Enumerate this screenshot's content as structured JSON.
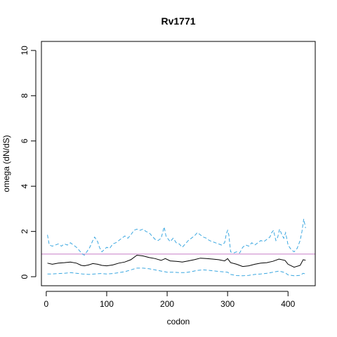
{
  "chart_data": {
    "type": "line",
    "title": "Rv1771",
    "xlabel": "codon",
    "ylabel": "omega (dN/dS)",
    "xlim": [
      -8,
      445
    ],
    "ylim": [
      -0.4,
      10.4
    ],
    "x_ticks": [
      0,
      100,
      200,
      300,
      400
    ],
    "y_ticks": [
      0,
      2,
      4,
      6,
      8,
      10
    ],
    "grid": false,
    "reference_line": {
      "y": 1,
      "color": "#c77cc7"
    },
    "colors": {
      "mean": "#000000",
      "bounds": "#3aa7e0"
    },
    "series": [
      {
        "role": "upper-bound",
        "style": "dashed",
        "x": [
          2,
          5,
          10,
          15,
          20,
          25,
          30,
          35,
          40,
          45,
          50,
          55,
          60,
          63,
          67,
          72,
          77,
          80,
          85,
          88,
          92,
          96,
          100,
          105,
          110,
          115,
          120,
          125,
          130,
          135,
          140,
          145,
          150,
          155,
          160,
          165,
          170,
          175,
          180,
          185,
          190,
          195,
          198,
          202,
          205,
          210,
          215,
          220,
          225,
          230,
          235,
          240,
          245,
          250,
          255,
          260,
          265,
          270,
          275,
          280,
          285,
          290,
          295,
          298,
          300,
          302,
          305,
          310,
          315,
          320,
          325,
          330,
          335,
          340,
          345,
          350,
          355,
          360,
          365,
          370,
          373,
          376,
          378,
          380,
          383,
          386,
          390,
          393,
          396,
          400,
          405,
          410,
          415,
          420,
          423,
          426,
          429
        ],
        "values": [
          1.85,
          1.4,
          1.35,
          1.4,
          1.45,
          1.35,
          1.45,
          1.4,
          1.5,
          1.4,
          1.3,
          1.15,
          1.0,
          0.95,
          1.1,
          1.3,
          1.6,
          1.75,
          1.55,
          1.3,
          1.1,
          1.2,
          1.3,
          1.25,
          1.45,
          1.5,
          1.6,
          1.7,
          1.8,
          1.7,
          1.85,
          2.05,
          2.1,
          2.05,
          2.1,
          2.0,
          1.95,
          1.8,
          1.65,
          1.6,
          1.7,
          2.2,
          1.8,
          1.65,
          1.55,
          1.7,
          1.5,
          1.45,
          1.3,
          1.45,
          1.6,
          1.7,
          1.8,
          1.95,
          1.85,
          1.75,
          1.7,
          1.6,
          1.55,
          1.5,
          1.45,
          1.4,
          1.5,
          1.9,
          2.05,
          1.85,
          1.1,
          1.05,
          1.1,
          1.05,
          1.3,
          1.4,
          1.35,
          1.5,
          1.4,
          1.5,
          1.6,
          1.55,
          1.65,
          1.75,
          1.95,
          2.05,
          1.8,
          1.6,
          1.75,
          2.1,
          1.85,
          1.7,
          1.95,
          1.4,
          1.2,
          1.1,
          1.25,
          1.6,
          2.0,
          2.55,
          2.15
        ]
      },
      {
        "role": "mean",
        "style": "solid",
        "x": [
          2,
          10,
          20,
          30,
          40,
          50,
          58,
          63,
          70,
          77,
          85,
          92,
          100,
          110,
          120,
          130,
          140,
          150,
          160,
          170,
          180,
          190,
          197,
          205,
          215,
          225,
          235,
          245,
          255,
          265,
          275,
          285,
          295,
          300,
          305,
          315,
          325,
          335,
          345,
          355,
          365,
          375,
          385,
          395,
          400,
          410,
          420,
          425,
          429
        ],
        "values": [
          0.6,
          0.55,
          0.6,
          0.62,
          0.65,
          0.6,
          0.5,
          0.48,
          0.52,
          0.58,
          0.55,
          0.5,
          0.48,
          0.52,
          0.6,
          0.65,
          0.75,
          0.95,
          0.92,
          0.85,
          0.8,
          0.72,
          0.8,
          0.7,
          0.68,
          0.65,
          0.7,
          0.75,
          0.82,
          0.8,
          0.78,
          0.75,
          0.7,
          0.8,
          0.62,
          0.55,
          0.45,
          0.48,
          0.55,
          0.6,
          0.62,
          0.68,
          0.78,
          0.72,
          0.55,
          0.42,
          0.5,
          0.75,
          0.73
        ]
      },
      {
        "role": "lower-bound",
        "style": "dashed",
        "x": [
          2,
          10,
          20,
          30,
          40,
          50,
          60,
          70,
          80,
          90,
          100,
          110,
          120,
          130,
          140,
          150,
          160,
          170,
          180,
          190,
          200,
          210,
          220,
          230,
          240,
          250,
          260,
          270,
          280,
          290,
          300,
          305,
          315,
          325,
          335,
          345,
          355,
          365,
          375,
          385,
          395,
          400,
          410,
          420,
          425,
          429
        ],
        "values": [
          0.12,
          0.12,
          0.14,
          0.15,
          0.18,
          0.15,
          0.12,
          0.1,
          0.12,
          0.14,
          0.12,
          0.14,
          0.18,
          0.22,
          0.3,
          0.38,
          0.38,
          0.35,
          0.3,
          0.25,
          0.2,
          0.2,
          0.18,
          0.18,
          0.22,
          0.28,
          0.3,
          0.28,
          0.25,
          0.22,
          0.2,
          0.1,
          0.05,
          0.04,
          0.06,
          0.1,
          0.12,
          0.15,
          0.2,
          0.25,
          0.18,
          0.08,
          0.04,
          0.06,
          0.15,
          0.12
        ]
      }
    ]
  }
}
